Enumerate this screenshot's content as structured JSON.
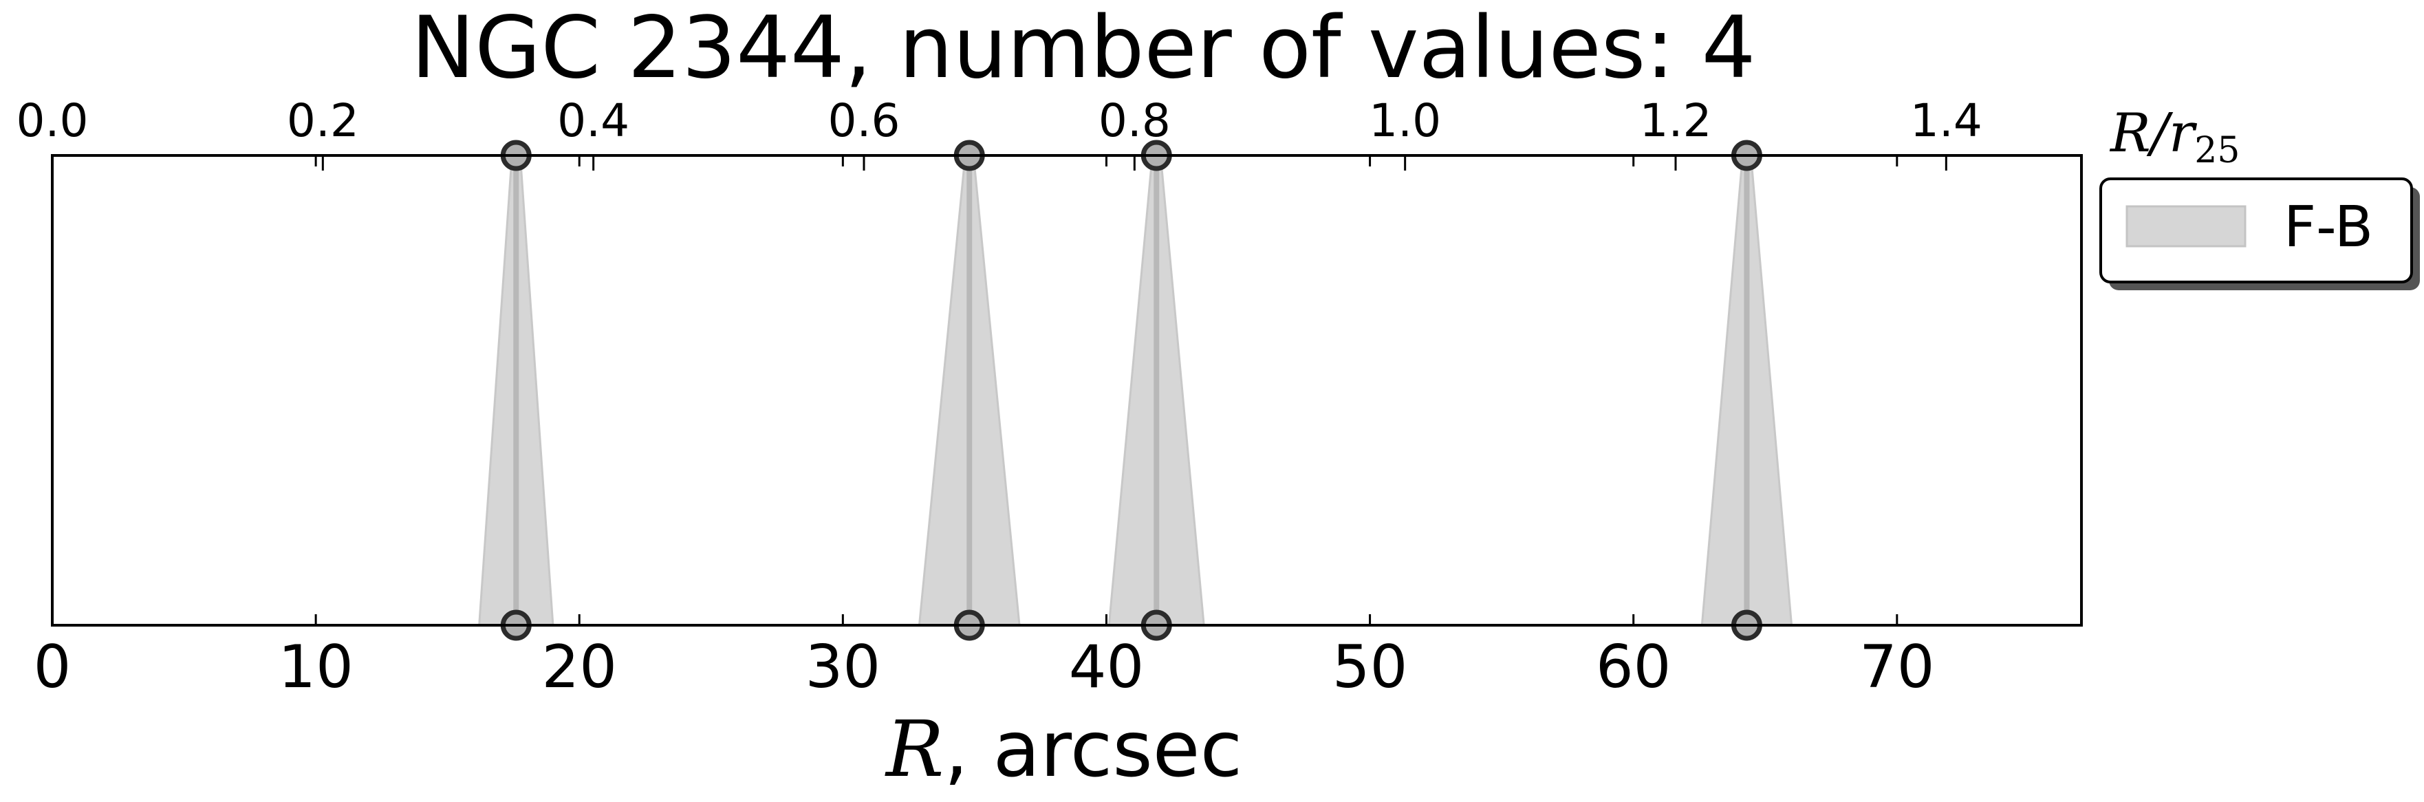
{
  "chart_data": {
    "type": "scatter",
    "title": "NGC 2344, number of values: 4",
    "xlabel_symbol": "R",
    "xlabel_unit": ", arcsec",
    "xlim": [
      0,
      77
    ],
    "ylim": [
      0,
      1
    ],
    "x_ticks": [
      "0",
      "10",
      "20",
      "30",
      "40",
      "50",
      "60",
      "70"
    ],
    "x_tick_values": [
      0,
      10,
      20,
      30,
      40,
      50,
      60,
      70
    ],
    "top_axis": {
      "label_symbol": "R/r",
      "label_subscript": "25",
      "ticks": [
        "0.0",
        "0.2",
        "0.4",
        "0.6",
        "0.8",
        "1.0",
        "1.2",
        "1.4"
      ],
      "tick_values": [
        0.0,
        0.2,
        0.4,
        0.6,
        0.8,
        1.0,
        1.2,
        1.4
      ],
      "range": [
        0,
        1.5
      ]
    },
    "legend": {
      "placement": "upper-right-outside",
      "entries": [
        "F-B"
      ]
    },
    "series": [
      {
        "name": "F-B",
        "points": [
          {
            "x": 17.6,
            "x_err": 1.4
          },
          {
            "x": 34.8,
            "x_err": 1.9
          },
          {
            "x": 41.9,
            "x_err": 1.8
          },
          {
            "x": 64.3,
            "x_err": 1.7
          }
        ],
        "fill_color": "#d6d6d6",
        "line_color": "#b8b8b8",
        "marker_face": "#b0b0b0",
        "marker_edge": "#2b2b2b"
      }
    ]
  }
}
